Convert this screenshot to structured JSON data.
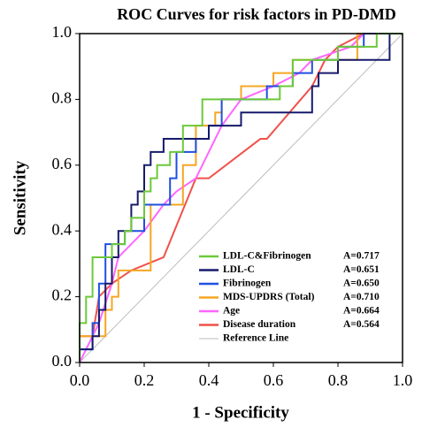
{
  "chart_data": {
    "type": "line",
    "title": "ROC Curves for risk factors in PD-DMD",
    "x_label": "1 - Specificity",
    "y_label": "Sensitivity",
    "xlim": [
      0,
      1
    ],
    "ylim": [
      0,
      1
    ],
    "xticks": [
      {
        "value": 0,
        "label": "0.0"
      },
      0.2,
      0.4,
      0.6,
      0.8,
      {
        "value": 1,
        "label": "1.0"
      }
    ],
    "yticks": [
      {
        "value": 0,
        "label": "0.0"
      },
      0.2,
      0.4,
      0.6,
      0.8,
      {
        "value": 1,
        "label": "1.0"
      }
    ],
    "legend": "lower right",
    "series": [
      {
        "name": "LDL-C&Fibrinogen",
        "annotation": "A=0.717",
        "color": "#6cc93a",
        "x": [
          0,
          0,
          0.02,
          0.02,
          0.04,
          0.04,
          0.1,
          0.1,
          0.14,
          0.14,
          0.16,
          0.16,
          0.2,
          0.2,
          0.22,
          0.22,
          0.24,
          0.24,
          0.28,
          0.28,
          0.32,
          0.32,
          0.38,
          0.38,
          0.62,
          0.62,
          0.66,
          0.66,
          0.8,
          0.8,
          0.92,
          0.92,
          1
        ],
        "values": [
          0,
          0.12,
          0.12,
          0.2,
          0.2,
          0.32,
          0.32,
          0.36,
          0.36,
          0.4,
          0.4,
          0.44,
          0.44,
          0.52,
          0.52,
          0.56,
          0.56,
          0.6,
          0.6,
          0.64,
          0.64,
          0.72,
          0.72,
          0.8,
          0.8,
          0.84,
          0.84,
          0.92,
          0.92,
          0.96,
          0.96,
          1,
          1
        ]
      },
      {
        "name": "LDL-C",
        "annotation": "A=0.651",
        "color": "#161a6b",
        "x": [
          0,
          0,
          0.04,
          0.04,
          0.06,
          0.06,
          0.08,
          0.08,
          0.1,
          0.1,
          0.12,
          0.12,
          0.16,
          0.16,
          0.18,
          0.18,
          0.2,
          0.2,
          0.22,
          0.22,
          0.26,
          0.26,
          0.4,
          0.4,
          0.5,
          0.5,
          0.72,
          0.72,
          0.74,
          0.74,
          0.8,
          0.8,
          0.96,
          0.96,
          1
        ],
        "values": [
          0,
          0.04,
          0.04,
          0.08,
          0.08,
          0.16,
          0.16,
          0.24,
          0.24,
          0.32,
          0.32,
          0.4,
          0.4,
          0.48,
          0.48,
          0.52,
          0.52,
          0.6,
          0.6,
          0.64,
          0.64,
          0.68,
          0.68,
          0.72,
          0.72,
          0.76,
          0.76,
          0.84,
          0.84,
          0.88,
          0.88,
          0.92,
          0.92,
          1,
          1
        ]
      },
      {
        "name": "Fibrinogen",
        "annotation": "A=0.650",
        "color": "#1f4fe0",
        "x": [
          0,
          0,
          0.04,
          0.04,
          0.06,
          0.06,
          0.08,
          0.08,
          0.14,
          0.14,
          0.2,
          0.2,
          0.28,
          0.28,
          0.3,
          0.3,
          0.36,
          0.36,
          0.4,
          0.4,
          0.44,
          0.44,
          0.58,
          0.58,
          0.66,
          0.66,
          0.72,
          0.72,
          0.8,
          0.8,
          0.88,
          0.88,
          1
        ],
        "values": [
          0,
          0.04,
          0.04,
          0.12,
          0.12,
          0.24,
          0.24,
          0.36,
          0.36,
          0.4,
          0.4,
          0.48,
          0.48,
          0.56,
          0.56,
          0.64,
          0.64,
          0.68,
          0.68,
          0.72,
          0.72,
          0.8,
          0.8,
          0.84,
          0.84,
          0.88,
          0.88,
          0.92,
          0.92,
          0.96,
          0.96,
          1,
          1
        ]
      },
      {
        "name": "MDS-UPDRS (Total)",
        "annotation": "A=0.710",
        "color": "#f5a623",
        "x": [
          0,
          0,
          0.08,
          0.08,
          0.1,
          0.1,
          0.12,
          0.12,
          0.22,
          0.22,
          0.32,
          0.32,
          0.36,
          0.36,
          0.42,
          0.42,
          0.44,
          0.44,
          0.5,
          0.5,
          0.6,
          0.6,
          0.66,
          0.66,
          0.86,
          0.86,
          1
        ],
        "values": [
          0,
          0.08,
          0.08,
          0.16,
          0.16,
          0.2,
          0.2,
          0.28,
          0.28,
          0.48,
          0.48,
          0.6,
          0.6,
          0.72,
          0.72,
          0.76,
          0.76,
          0.8,
          0.8,
          0.84,
          0.84,
          0.88,
          0.88,
          0.92,
          0.92,
          1,
          1
        ]
      },
      {
        "name": "Age",
        "annotation": "A=0.664",
        "color": "#ff66ff",
        "x": [
          0,
          0.02,
          0.06,
          0.1,
          0.12,
          0.2,
          0.26,
          0.3,
          0.36,
          0.4,
          0.44,
          0.5,
          0.6,
          0.68,
          0.72,
          0.84,
          0.88,
          1
        ],
        "values": [
          0,
          0.04,
          0.12,
          0.24,
          0.32,
          0.4,
          0.48,
          0.52,
          0.56,
          0.64,
          0.72,
          0.8,
          0.84,
          0.88,
          0.92,
          0.96,
          1,
          1
        ]
      },
      {
        "name": "Disease duration",
        "annotation": "A=0.564",
        "color": "#f0514a",
        "x": [
          0,
          0,
          0.04,
          0.06,
          0.1,
          0.16,
          0.26,
          0.36,
          0.4,
          0.56,
          0.58,
          0.72,
          0.76,
          0.8,
          0.88,
          1
        ],
        "values": [
          0,
          0.08,
          0.08,
          0.2,
          0.24,
          0.28,
          0.32,
          0.56,
          0.56,
          0.68,
          0.68,
          0.84,
          0.92,
          0.96,
          1,
          1
        ]
      },
      {
        "name": "Reference Line",
        "color": "#bdbdbd",
        "x": [
          0,
          1
        ],
        "values": [
          0,
          1
        ]
      }
    ]
  }
}
